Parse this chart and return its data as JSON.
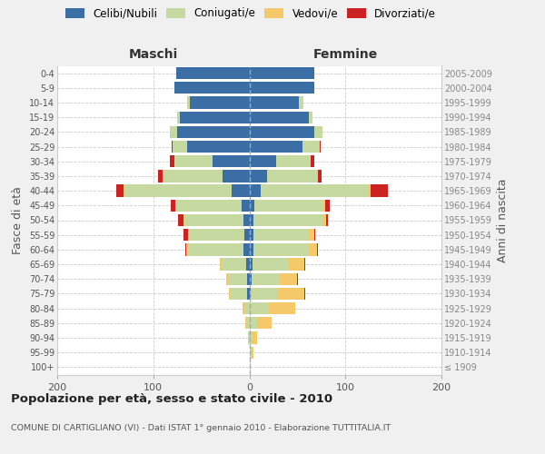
{
  "age_groups": [
    "100+",
    "95-99",
    "90-94",
    "85-89",
    "80-84",
    "75-79",
    "70-74",
    "65-69",
    "60-64",
    "55-59",
    "50-54",
    "45-49",
    "40-44",
    "35-39",
    "30-34",
    "25-29",
    "20-24",
    "15-19",
    "10-14",
    "5-9",
    "0-4"
  ],
  "birth_years": [
    "≤ 1909",
    "1910-1914",
    "1915-1919",
    "1920-1924",
    "1925-1929",
    "1930-1934",
    "1935-1939",
    "1940-1944",
    "1945-1949",
    "1950-1954",
    "1955-1959",
    "1960-1964",
    "1965-1969",
    "1970-1974",
    "1975-1979",
    "1980-1984",
    "1985-1989",
    "1990-1994",
    "1995-1999",
    "2000-2004",
    "2005-2009"
  ],
  "colors": {
    "celibi": "#3a6ea5",
    "coniugati": "#c5d9a0",
    "vedovi": "#f5c96a",
    "divorziati": "#cc2222"
  },
  "maschi": {
    "celibi": [
      0,
      0,
      0,
      0,
      0,
      2,
      2,
      3,
      6,
      5,
      6,
      8,
      18,
      28,
      38,
      65,
      75,
      72,
      62,
      78,
      76
    ],
    "coniugati": [
      0,
      0,
      1,
      3,
      5,
      18,
      20,
      26,
      58,
      58,
      62,
      68,
      112,
      62,
      40,
      15,
      8,
      3,
      3,
      0,
      0
    ],
    "vedovi": [
      0,
      0,
      0,
      1,
      2,
      1,
      2,
      2,
      2,
      1,
      1,
      1,
      1,
      0,
      0,
      0,
      0,
      0,
      0,
      0,
      0
    ],
    "divorziati": [
      0,
      0,
      0,
      0,
      0,
      0,
      0,
      0,
      1,
      5,
      5,
      5,
      8,
      5,
      5,
      1,
      0,
      0,
      0,
      0,
      0
    ]
  },
  "femmine": {
    "celibi": [
      0,
      0,
      0,
      0,
      0,
      1,
      2,
      3,
      4,
      4,
      4,
      5,
      12,
      18,
      28,
      55,
      68,
      62,
      52,
      68,
      68
    ],
    "coniugati": [
      0,
      2,
      3,
      8,
      20,
      28,
      30,
      38,
      58,
      58,
      72,
      72,
      112,
      52,
      36,
      18,
      8,
      4,
      4,
      0,
      0
    ],
    "vedovi": [
      1,
      2,
      5,
      15,
      28,
      28,
      18,
      16,
      8,
      6,
      4,
      2,
      2,
      1,
      0,
      0,
      0,
      0,
      0,
      0,
      0
    ],
    "divorziati": [
      0,
      0,
      0,
      0,
      0,
      1,
      1,
      1,
      1,
      1,
      2,
      5,
      18,
      4,
      4,
      1,
      0,
      0,
      0,
      0,
      0
    ]
  },
  "xlim": 200,
  "title": "Popolazione per età, sesso e stato civile - 2010",
  "subtitle": "COMUNE DI CARTIGLIANO (VI) - Dati ISTAT 1° gennaio 2010 - Elaborazione TUTTITALIA.IT",
  "xlabel_left": "Maschi",
  "xlabel_right": "Femmine",
  "ylabel_left": "Fasce di età",
  "ylabel_right": "Anni di nascita",
  "legend_labels": [
    "Celibi/Nubili",
    "Coniugati/e",
    "Vedovi/e",
    "Divorziati/e"
  ],
  "bg_color": "#f0f0f0",
  "plot_bg": "#ffffff"
}
